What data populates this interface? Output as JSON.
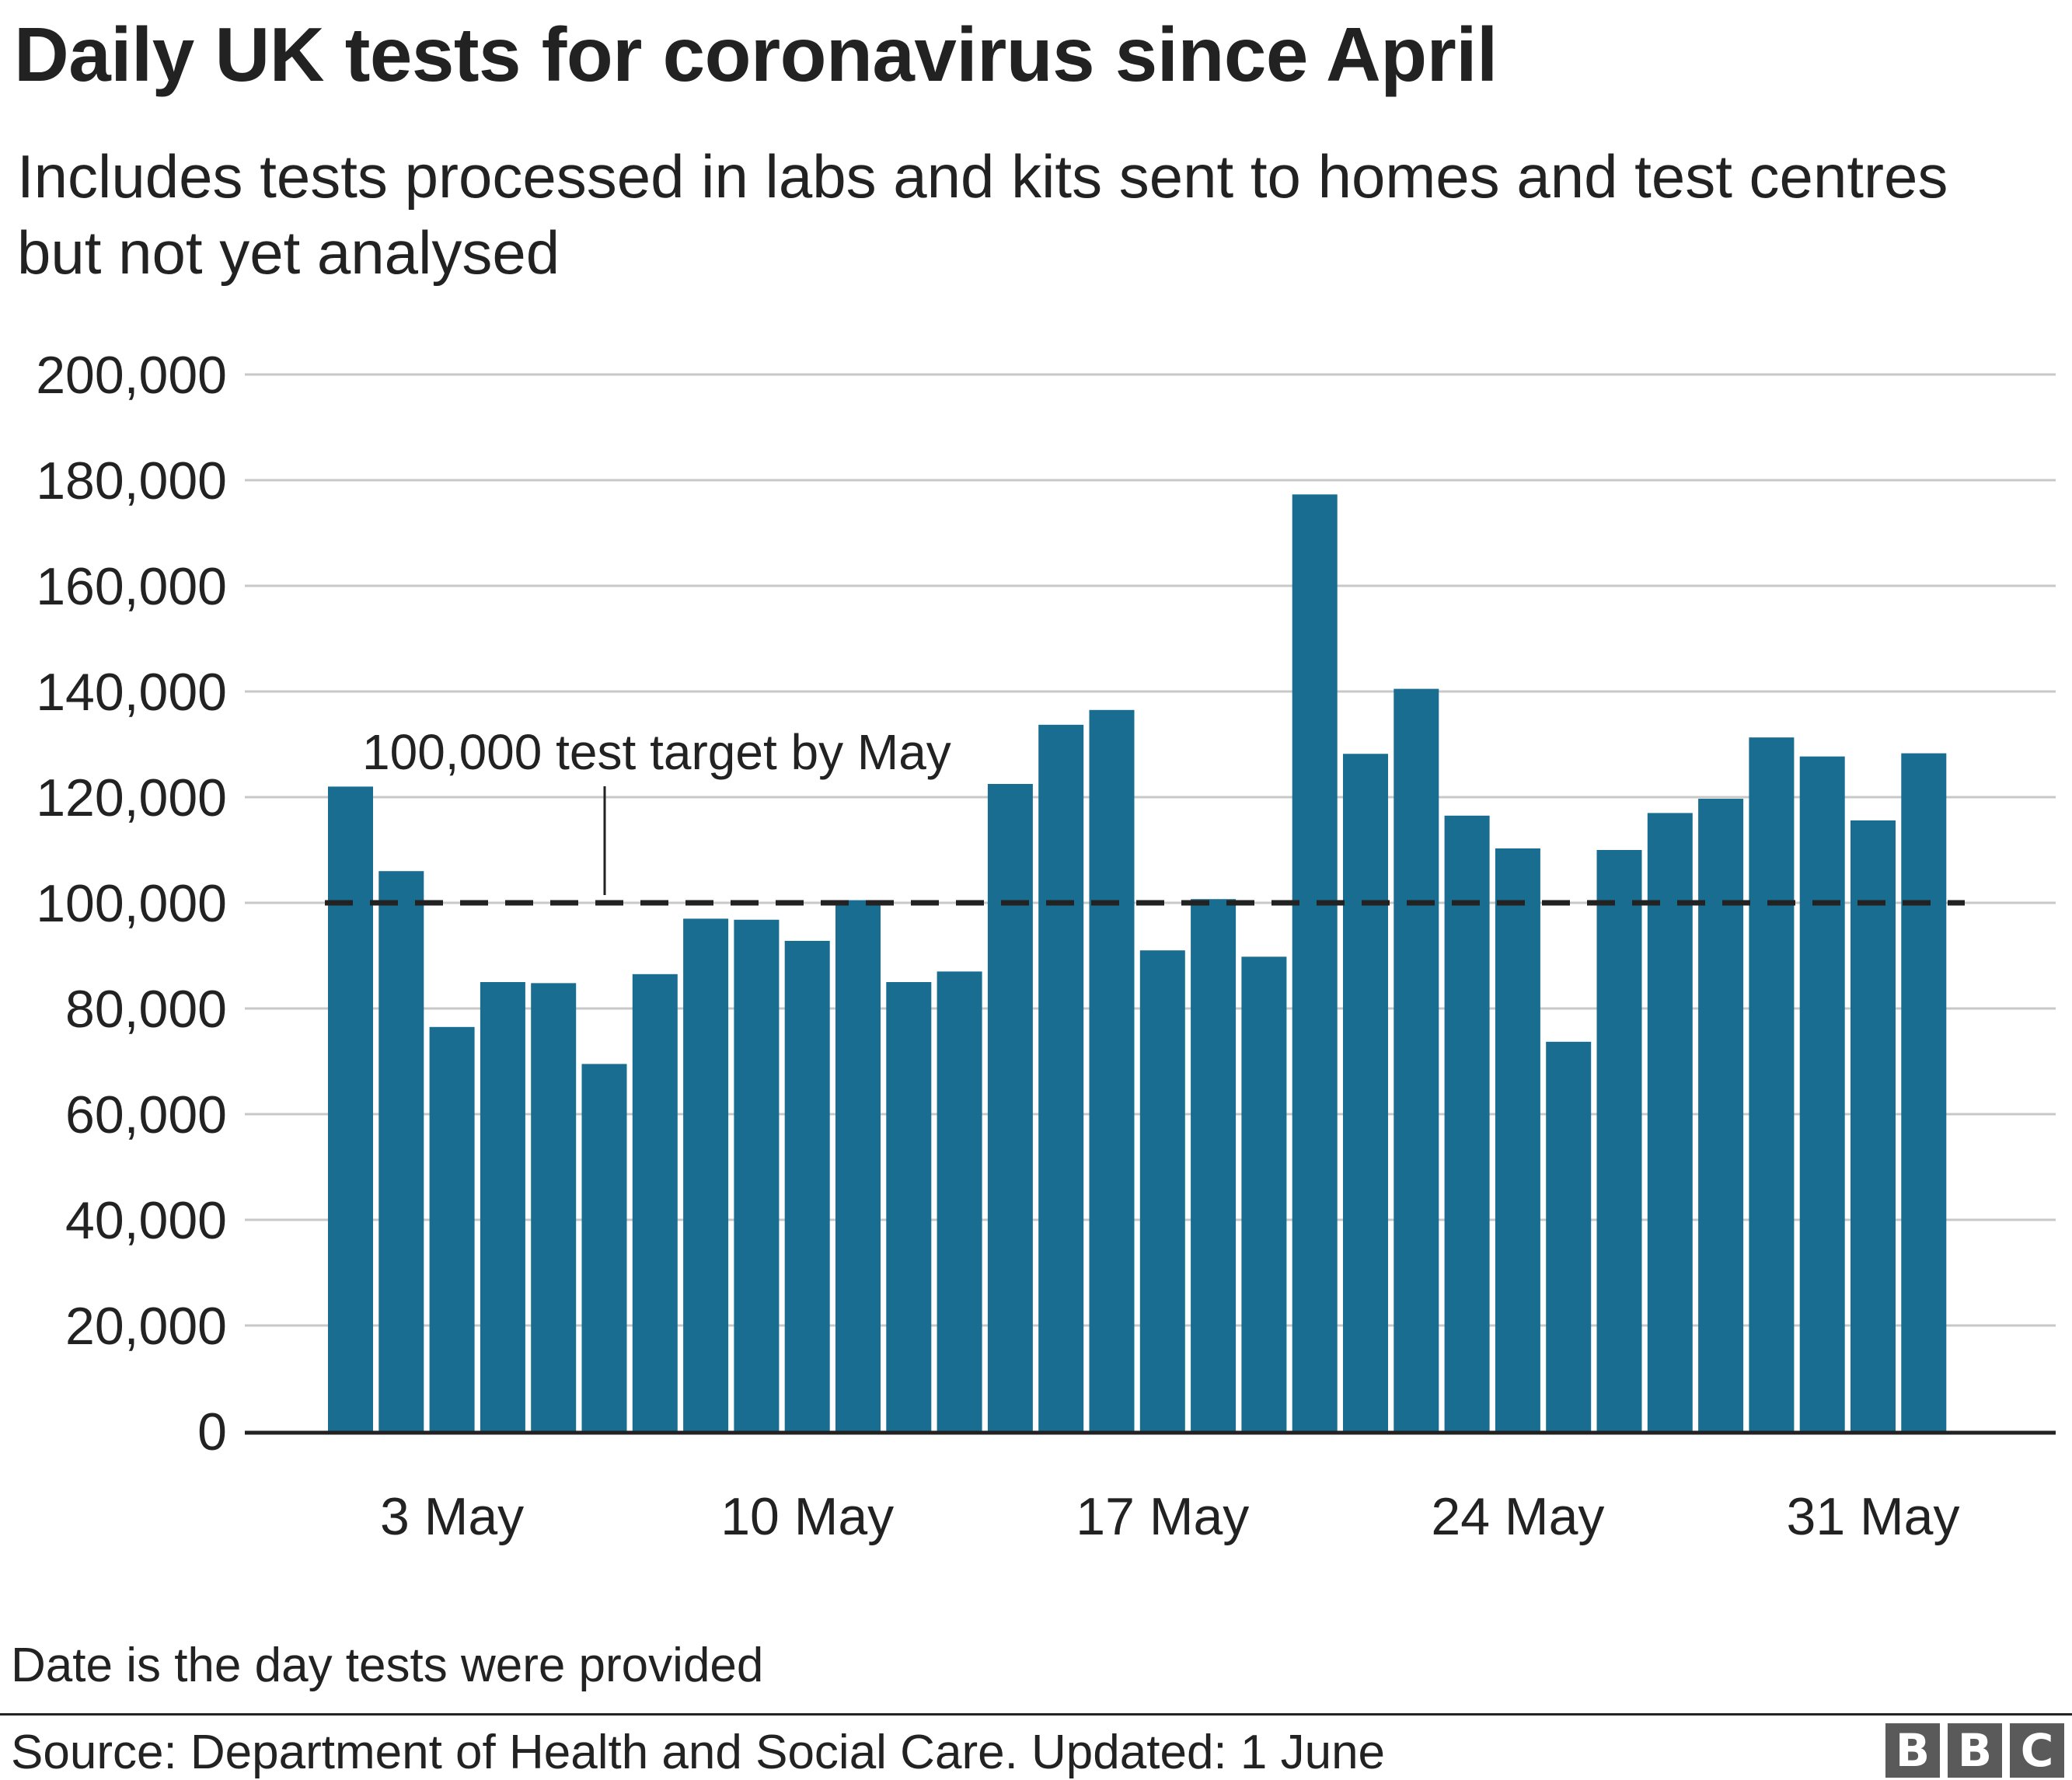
{
  "title": "Daily UK tests for coronavirus since April",
  "subtitle": "Includes tests processed in labs and kits sent to homes and test centres but not yet analysed",
  "note": "Date is the day tests were provided",
  "source": "Source: Department of Health and Social Care. Updated: 1 June",
  "logo": {
    "letters": [
      "B",
      "B",
      "C"
    ]
  },
  "colors": {
    "bar": "#186d91",
    "grid": "#c8c8c8",
    "axis": "#222222",
    "target_line": "#222222"
  },
  "chart_data": {
    "type": "bar",
    "title": "Daily UK tests for coronavirus since April",
    "subtitle": "Includes tests processed in labs and kits sent to homes and test centres but not yet analysed",
    "categories": [
      "1 May",
      "2 May",
      "3 May",
      "4 May",
      "5 May",
      "6 May",
      "7 May",
      "8 May",
      "9 May",
      "10 May",
      "11 May",
      "12 May",
      "13 May",
      "14 May",
      "15 May",
      "16 May",
      "17 May",
      "18 May",
      "19 May",
      "20 May",
      "21 May",
      "22 May",
      "23 May",
      "24 May",
      "25 May",
      "26 May",
      "27 May",
      "28 May",
      "29 May",
      "30 May",
      "31 May",
      "1 June"
    ],
    "values": [
      122000,
      106000,
      76500,
      85000,
      84800,
      69500,
      86500,
      97000,
      96800,
      92800,
      100500,
      85000,
      87000,
      122500,
      133700,
      136500,
      91000,
      100700,
      89800,
      177300,
      128200,
      140500,
      116500,
      110300,
      73700,
      110000,
      117000,
      119700,
      131300,
      127700,
      115600,
      128300
    ],
    "x_tick_labels": [
      "3 May",
      "10 May",
      "17 May",
      "24 May",
      "31 May"
    ],
    "x_tick_categories": [
      "3 May",
      "10 May",
      "17 May",
      "24 May",
      "31 May"
    ],
    "y_ticks": [
      0,
      20000,
      40000,
      60000,
      80000,
      100000,
      120000,
      140000,
      160000,
      180000,
      200000
    ],
    "y_tick_labels": [
      "0",
      "20,000",
      "40,000",
      "60,000",
      "80,000",
      "100,000",
      "120,000",
      "140,000",
      "160,000",
      "180,000",
      "200,000"
    ],
    "ylim": [
      0,
      200000
    ],
    "grid": true,
    "legend": "none",
    "annotations": [
      {
        "text": "100,000 test target by May",
        "y": 100000,
        "style": "dashed reference line"
      }
    ],
    "xlabel": "",
    "ylabel": ""
  }
}
